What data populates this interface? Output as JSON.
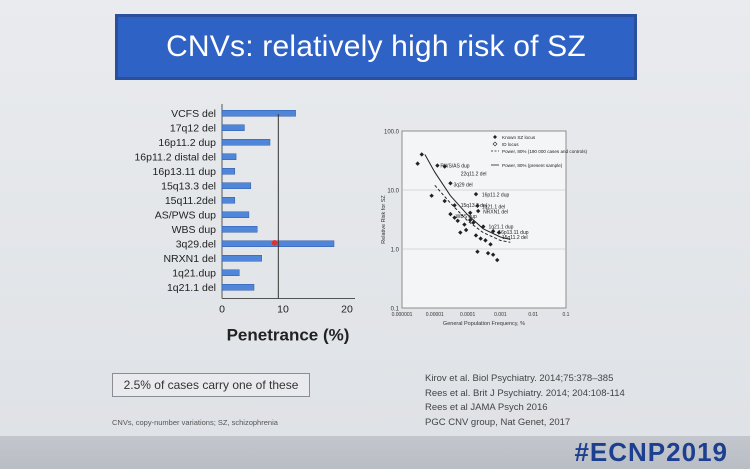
{
  "title": "CNVs: relatively high risk of SZ",
  "hashtag": "#ECNP2019",
  "note_box": "2.5% of cases carry one of these",
  "footnote": "CNVs, copy-number variations; SZ, schizophrenia",
  "references": [
    "Kirov et al. Biol Psychiatry. 2014;75:378–385",
    "Rees et al. Brit J Psychiatry. 2014; 204:108-114",
    "Rees et al JAMA Psych 2016",
    "PGC CNV group, Nat Genet, 2017"
  ],
  "chart_data": [
    {
      "type": "bar",
      "orientation": "horizontal",
      "categories": [
        "VCFS del",
        "17q12 del",
        "16p11.2 dup",
        "16p11.2 distal del",
        "16p13.11 dup",
        "15q13.3 del",
        "15q11.2del",
        "AS/PWS dup",
        "WBS dup",
        "3q29.del",
        "NRXN1 del",
        "1q21.dup",
        "1q21.1 del"
      ],
      "values": [
        11.5,
        3.5,
        7.5,
        2.2,
        2.0,
        4.5,
        2.0,
        4.2,
        5.5,
        17.5,
        6.2,
        2.7,
        5.0
      ],
      "xlabel": "Penetrance (%)",
      "xlim": [
        0,
        20
      ],
      "xticks": [
        "0",
        "10",
        "20"
      ],
      "reference_line_x": 8.8,
      "highlight": "3q29.del",
      "colors": {
        "bar": "#4f86d9",
        "reference_line": "#333333",
        "highlight": "#e03030"
      }
    },
    {
      "type": "scatter",
      "xscale": "log",
      "yscale": "log",
      "xlabel": "General Population Frequency, %",
      "ylabel": "Relative Risk for SZ",
      "xticks": [
        "0.000001",
        "0.00001",
        "0.0001",
        "0.001",
        "0.01",
        "0.1"
      ],
      "yticks": [
        "0.1",
        "1.0",
        "10.0",
        "100.0"
      ],
      "xlim": [
        1e-06,
        0.1
      ],
      "ylim": [
        0.1,
        100
      ],
      "legend": [
        "Known SZ locus",
        "ID locus",
        "Power, 80% (190 000 cases and controls)",
        "Power, 80% (present sample)"
      ],
      "legend_position": "top-right",
      "labels": [
        "PWS/AS dup",
        "22q11.2 del",
        "3q29 del",
        "16p11.2 dup",
        "1q21.1 del",
        "NRXN1 del",
        "WBS dup",
        "15q13.3 del",
        "1q21.1 dup",
        "16p13.11 dup",
        "15q11.2 del"
      ],
      "points": [
        {
          "x": 4e-06,
          "y": 40
        },
        {
          "x": 3e-06,
          "y": 28
        },
        {
          "x": 1.2e-05,
          "y": 26
        },
        {
          "x": 2e-05,
          "y": 25
        },
        {
          "x": 3e-05,
          "y": 13
        },
        {
          "x": 0.00018,
          "y": 8.5
        },
        {
          "x": 8e-06,
          "y": 8
        },
        {
          "x": 2e-05,
          "y": 6.5
        },
        {
          "x": 4e-05,
          "y": 5.5
        },
        {
          "x": 0.0002,
          "y": 5.4
        },
        {
          "x": 0.00021,
          "y": 4.4
        },
        {
          "x": 0.00012,
          "y": 4.1
        },
        {
          "x": 3e-05,
          "y": 3.9
        },
        {
          "x": 4e-05,
          "y": 3.4
        },
        {
          "x": 5e-05,
          "y": 3.0
        },
        {
          "x": 0.00012,
          "y": 3.1
        },
        {
          "x": 8e-05,
          "y": 2.6
        },
        {
          "x": 0.0003,
          "y": 2.4
        },
        {
          "x": 9e-05,
          "y": 2.1
        },
        {
          "x": 0.0006,
          "y": 2.0
        },
        {
          "x": 0.0009,
          "y": 1.9
        },
        {
          "x": 0.00018,
          "y": 1.7
        },
        {
          "x": 0.00025,
          "y": 1.5
        },
        {
          "x": 0.0005,
          "y": 1.2
        },
        {
          "x": 0.0002,
          "y": 0.9
        },
        {
          "x": 0.00042,
          "y": 0.85
        },
        {
          "x": 0.0006,
          "y": 0.8
        },
        {
          "x": 0.0008,
          "y": 0.65
        },
        {
          "x": 6e-05,
          "y": 1.9
        },
        {
          "x": 0.00015,
          "y": 2.8
        },
        {
          "x": 0.00035,
          "y": 1.4
        }
      ],
      "curves": {
        "solid": [
          [
            5e-06,
            40
          ],
          [
            1e-05,
            20
          ],
          [
            3e-05,
            8
          ],
          [
            0.0001,
            3.8
          ],
          [
            0.0003,
            2.2
          ],
          [
            0.001,
            1.6
          ],
          [
            0.002,
            1.45
          ]
        ],
        "dashed": [
          [
            1e-05,
            12
          ],
          [
            3e-05,
            6
          ],
          [
            0.0001,
            3.0
          ],
          [
            0.0003,
            1.9
          ],
          [
            0.001,
            1.4
          ],
          [
            0.002,
            1.3
          ]
        ]
      }
    }
  ]
}
